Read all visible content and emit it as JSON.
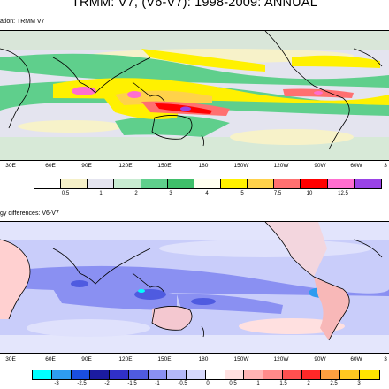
{
  "title": "TRMM: V7, (V6-V7): 1998-2009: ANNUAL",
  "panel1": {
    "label": "ation: TRMM V7",
    "lon_ticks": [
      "30E",
      "60E",
      "90E",
      "120E",
      "150E",
      "180",
      "150W",
      "120W",
      "90W",
      "60W",
      "3"
    ],
    "colorbar": {
      "colors": [
        "#ffffff",
        "#f5f0c8",
        "#e4e4ef",
        "#c8ecd2",
        "#5fcf8c",
        "#3fbf6a",
        "#fffff0",
        "#fff100",
        "#ffd24a",
        "#ff7070",
        "#ff0000",
        "#ff6ecf",
        "#9a43e6"
      ],
      "labels": [
        "0.5",
        "1",
        "2",
        "3",
        "4",
        "5",
        "7.5",
        "10",
        "12.5"
      ]
    }
  },
  "panel2": {
    "label": "gy differences: V6-V7",
    "lon_ticks": [
      "30E",
      "60E",
      "90E",
      "120E",
      "150E",
      "180",
      "150W",
      "120W",
      "90W",
      "60W",
      "3"
    ],
    "colorbar": {
      "colors": [
        "#00ffff",
        "#2e9cf0",
        "#1a4fe0",
        "#1b1ba0",
        "#3030c8",
        "#4f5be0",
        "#8a90f2",
        "#b4b8f8",
        "#d6d8fc",
        "#ffffff",
        "#ffe0e0",
        "#ffb4b4",
        "#ff8a8a",
        "#ff5050",
        "#ff2828",
        "#ffa040",
        "#ffc820",
        "#ffe400"
      ],
      "labels": [
        "-3",
        "-2.5",
        "-2",
        "-1.5",
        "-1",
        "-0.5",
        "0",
        "0.5",
        "1",
        "1.5",
        "2",
        "2.5",
        "3"
      ]
    }
  }
}
